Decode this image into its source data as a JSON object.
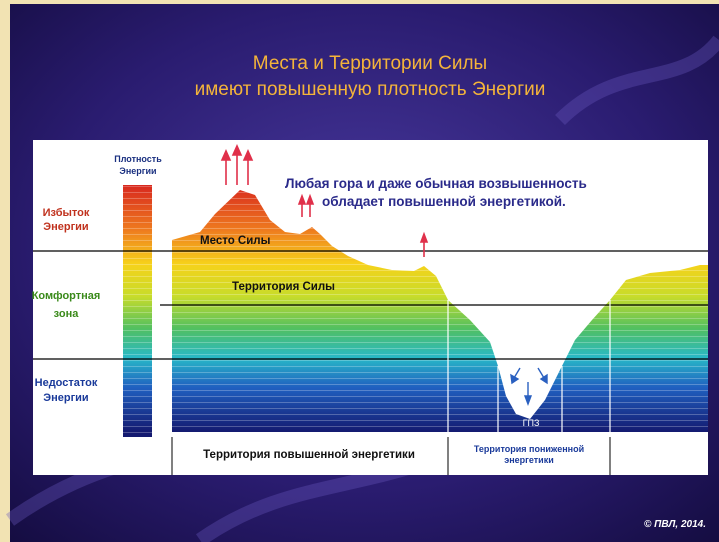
{
  "title_lines": [
    "Места и Территории Силы",
    "имеют повышенную плотность Энергии"
  ],
  "density_label": [
    "Плотность",
    "Энергии"
  ],
  "zones": [
    {
      "lines": [
        "Избыток",
        "Энергии"
      ]
    },
    {
      "lines": [
        "Комфортная",
        "зона"
      ]
    },
    {
      "lines": [
        "Недостаток",
        "Энергии"
      ]
    }
  ],
  "annotation": [
    "Любая гора и даже обычная возвышенность",
    "обладает повышенной энергетикой."
  ],
  "places": {
    "place_of_power": "Место Силы",
    "territory_of_power": "Территория Силы",
    "gpz": "ГПЗ"
  },
  "bottom": {
    "high": "Территория повышенной энергетики",
    "low": [
      "Территория пониженной",
      "энергетики"
    ]
  },
  "copyright": "© ПВЛ, 2014."
}
